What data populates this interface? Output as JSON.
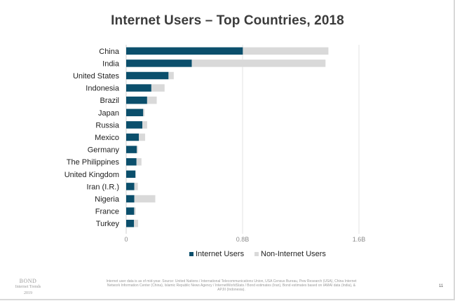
{
  "title": "Internet Users – Top Countries, 2018",
  "chart_data": {
    "type": "bar",
    "orientation": "horizontal",
    "stacked": true,
    "categories": [
      "China",
      "India",
      "United States",
      "Indonesia",
      "Brazil",
      "Japan",
      "Russia",
      "Mexico",
      "Germany",
      "The Philippines",
      "United Kingdom",
      "Iran (I.R.)",
      "Nigeria",
      "France",
      "Turkey"
    ],
    "series": [
      {
        "name": "Internet Users",
        "color": "#0b4f6c",
        "values": [
          0.802,
          0.451,
          0.291,
          0.173,
          0.144,
          0.117,
          0.111,
          0.087,
          0.073,
          0.071,
          0.064,
          0.056,
          0.056,
          0.055,
          0.054
        ]
      },
      {
        "name": "Non-Internet Users",
        "color": "#d9d9d9",
        "values": [
          0.588,
          0.919,
          0.036,
          0.091,
          0.066,
          0.009,
          0.033,
          0.043,
          0.009,
          0.034,
          0.002,
          0.024,
          0.144,
          0.01,
          0.028
        ]
      }
    ],
    "xlim": [
      0,
      1.6
    ],
    "xticks": [
      {
        "value": 0,
        "label": "0"
      },
      {
        "value": 0.8,
        "label": "0.8B"
      },
      {
        "value": 1.6,
        "label": "1.6B"
      }
    ],
    "xlabel": "",
    "ylabel": "",
    "grid": "vertical",
    "legend": "bottom"
  },
  "footer": {
    "logo_brand": "BOND",
    "logo_sub": "Internet Trends",
    "logo_year": "2019",
    "note": "Internet user data is as of mid-year.  Source: United Nations / International Telecommunications Union, USA Census Bureau, Pew Research (USA), China Internet Network Information Center (China), Islamic Republic News Agency / InternetWorldStats / Bond estimates (Iran), Bond estimates based on IAMAI data (India), & APJII (Indonesia).",
    "page_number": "11"
  }
}
